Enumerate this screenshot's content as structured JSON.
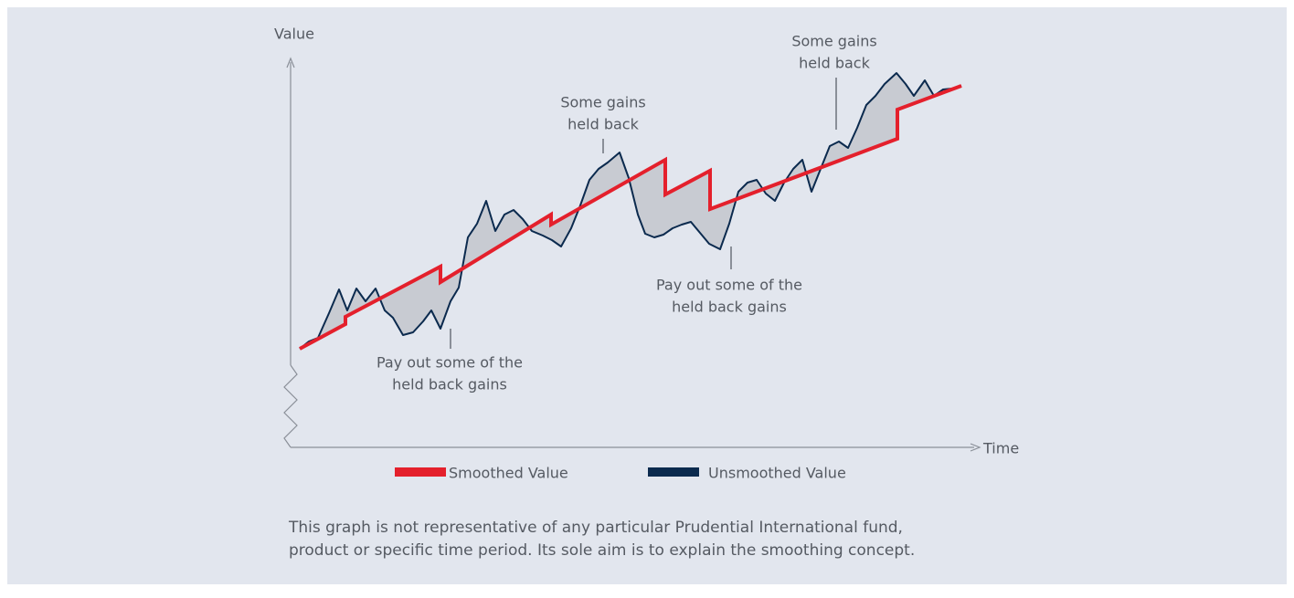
{
  "chart_data": {
    "type": "line",
    "y_label": "Value",
    "x_label": "Time",
    "xlim": [
      0,
      752
    ],
    "ylim": [
      0,
      425
    ],
    "series": [
      {
        "name": "Smoothed Value",
        "color": "#e4202c",
        "x": [
          10,
          60,
          60,
          164,
          164,
          285,
          285,
          410,
          410,
          459,
          459,
          664,
          664,
          734
        ],
        "values": [
          108,
          135,
          143,
          198,
          181,
          255,
          244,
          315,
          277,
          303,
          261,
          338,
          370,
          396
        ]
      },
      {
        "name": "Unsmoothed Value",
        "color": "#0b2a4e",
        "x": [
          10,
          20,
          30,
          42,
          53,
          62,
          72,
          82,
          93,
          103,
          112,
          123,
          134,
          145,
          154,
          164,
          175,
          184,
          194,
          204,
          214,
          224,
          234,
          244,
          254,
          264,
          276,
          286,
          296,
          307,
          317,
          327,
          337,
          347,
          360,
          370,
          380,
          388,
          398,
          408,
          418,
          428,
          438,
          448,
          458,
          470,
          480,
          490,
          500,
          510,
          520,
          530,
          540,
          550,
          560,
          570,
          580,
          590,
          600,
          610,
          620,
          630,
          640,
          650,
          663,
          673,
          682,
          694,
          704,
          714,
          724,
          734
        ],
        "values": [
          108,
          116,
          120,
          147,
          173,
          150,
          174,
          160,
          174,
          150,
          142,
          123,
          126,
          138,
          150,
          130,
          160,
          175,
          230,
          245,
          270,
          237,
          255,
          260,
          250,
          237,
          232,
          227,
          220,
          240,
          265,
          293,
          305,
          312,
          323,
          295,
          255,
          234,
          230,
          233,
          240,
          244,
          247,
          235,
          223,
          217,
          245,
          280,
          290,
          293,
          278,
          270,
          290,
          305,
          315,
          280,
          305,
          330,
          335,
          328,
          350,
          375,
          385,
          398,
          410,
          398,
          385,
          402,
          385,
          392,
          393,
          396
        ]
      }
    ],
    "annotations": [
      [
        "Pay out some of the",
        "held back gains"
      ],
      [
        "Some gains",
        "held back"
      ],
      [
        "Pay out some of the",
        "held back gains"
      ],
      [
        "Some gains",
        "held back"
      ]
    ],
    "footnote": [
      "This graph is not representative of any particular Prudential International fund,",
      "product or specific time period. Its sole aim is to explain the smoothing concept."
    ]
  }
}
